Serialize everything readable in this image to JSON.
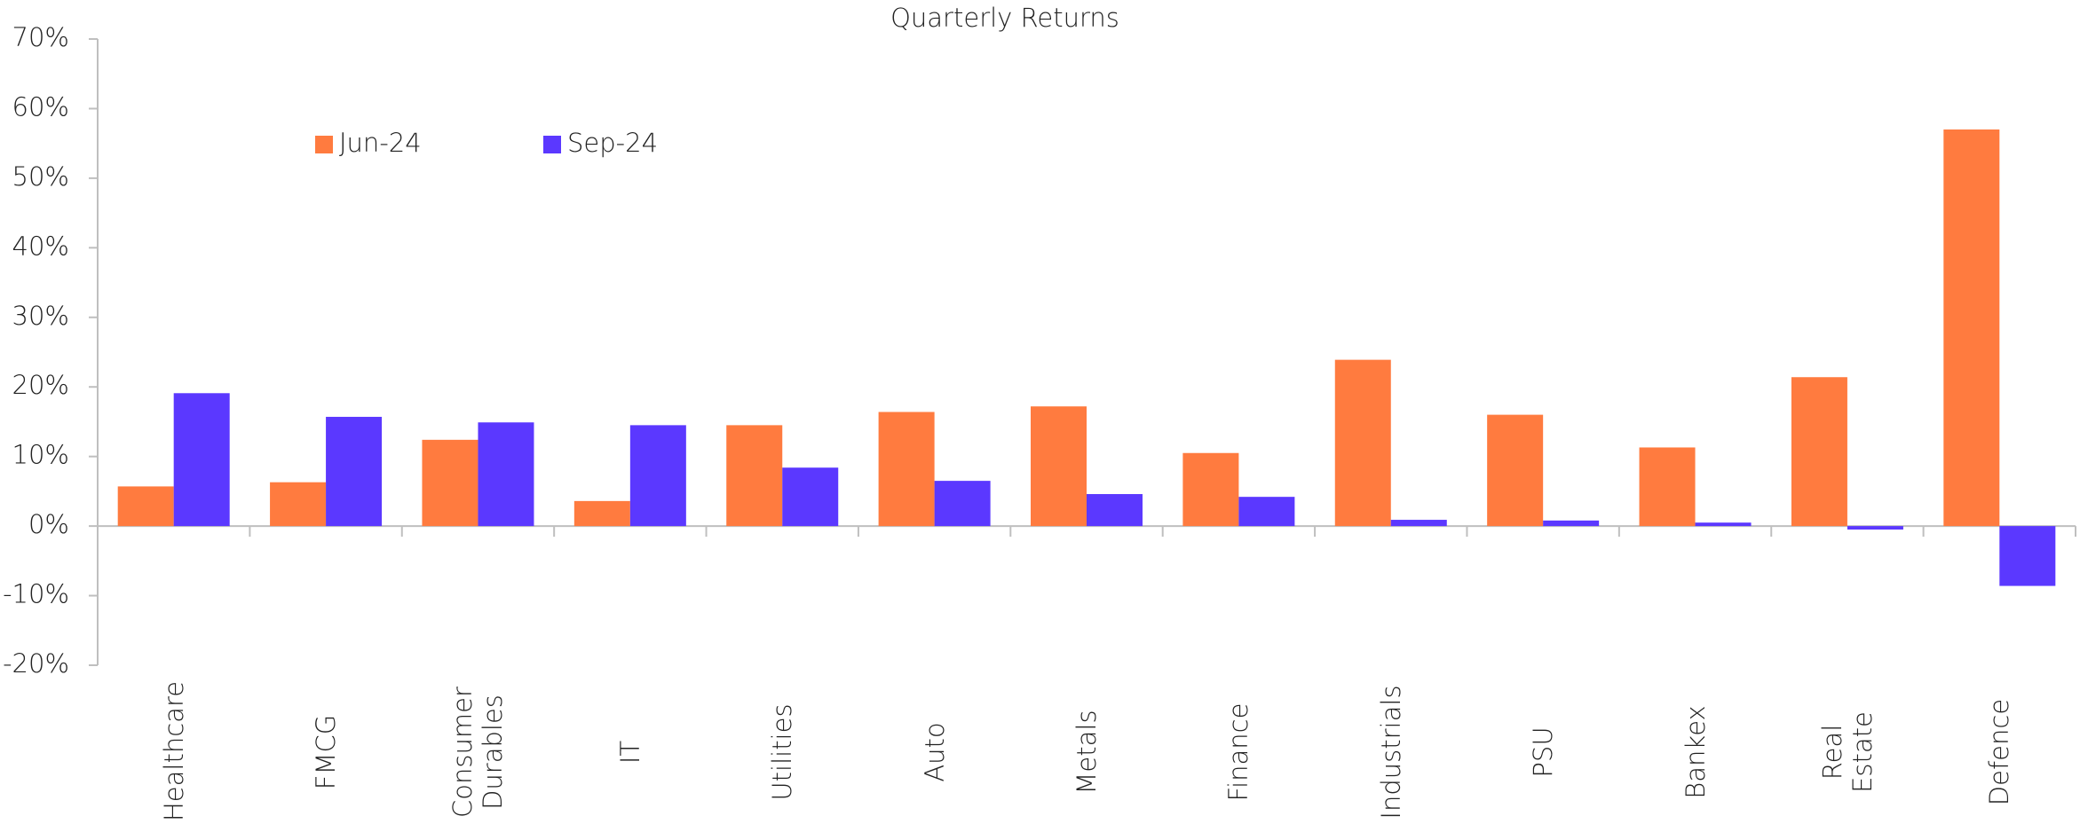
{
  "chart_data": {
    "type": "bar",
    "title": "Quarterly Returns",
    "categories": [
      "Healthcare",
      "FMCG",
      "Consumer Durables",
      "IT",
      "Utilities",
      "Auto",
      "Metals",
      "Finance",
      "Industrials",
      "PSU",
      "Bankex",
      "Real Estate",
      "Defence"
    ],
    "series": [
      {
        "name": "Jun-24",
        "color": "#ff7b3f",
        "values": [
          5.7,
          6.3,
          12.4,
          3.6,
          14.5,
          16.4,
          17.2,
          10.5,
          23.9,
          16.0,
          11.3,
          21.4,
          57.0
        ]
      },
      {
        "name": "Sep-24",
        "color": "#5b38ff",
        "values": [
          19.1,
          15.7,
          14.9,
          14.5,
          8.4,
          6.5,
          4.6,
          4.2,
          0.9,
          0.8,
          0.5,
          -0.5,
          -8.6
        ]
      }
    ],
    "ylim": [
      -20,
      70
    ],
    "yticks": [
      {
        "value": -20,
        "label": "-20%"
      },
      {
        "value": -10,
        "label": "-10%"
      },
      {
        "value": 0,
        "label": "0%"
      },
      {
        "value": 10,
        "label": "10%"
      },
      {
        "value": 20,
        "label": "20%"
      },
      {
        "value": 30,
        "label": "30%"
      },
      {
        "value": 40,
        "label": "40%"
      },
      {
        "value": 50,
        "label": "50%"
      },
      {
        "value": 60,
        "label": "60%"
      },
      {
        "value": 70,
        "label": "70%"
      }
    ],
    "grid": false,
    "legend": "top-left"
  }
}
